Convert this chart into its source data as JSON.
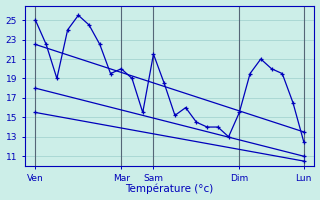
{
  "xlabel": "Température (°c)",
  "background_color": "#cceee8",
  "grid_color": "#aad8d4",
  "line_color": "#0000bb",
  "vline_color": "#556677",
  "yticks": [
    11,
    13,
    15,
    17,
    19,
    21,
    23,
    25
  ],
  "ylim": [
    10.0,
    26.5
  ],
  "xlim": [
    0.0,
    13.5
  ],
  "xtick_positions": [
    0.5,
    4.5,
    6.0,
    10.0,
    13.0
  ],
  "xtick_labels": [
    "Ven",
    "Mar",
    "Sam",
    "Dim",
    "Lun"
  ],
  "vline_positions": [
    0.5,
    4.5,
    6.0,
    10.0,
    13.0
  ],
  "series": [
    {
      "x": [
        0.5,
        1.0,
        1.5,
        2.0,
        2.5,
        3.0,
        3.5,
        4.0,
        4.5,
        5.0,
        5.5,
        6.0,
        6.5,
        7.0,
        7.5,
        8.0,
        8.5,
        9.0,
        9.5,
        10.0,
        10.5,
        11.0,
        11.5,
        12.0,
        12.5,
        13.0
      ],
      "y": [
        25.0,
        22.5,
        19.0,
        24.0,
        25.5,
        24.5,
        22.5,
        19.5,
        20.0,
        19.0,
        15.5,
        21.5,
        18.5,
        15.2,
        16.0,
        14.5,
        14.0,
        14.0,
        13.0,
        15.5,
        19.5,
        21.0,
        20.0,
        19.5,
        16.5,
        12.5
      ]
    },
    {
      "x": [
        0.5,
        13.0
      ],
      "y": [
        22.5,
        13.5
      ]
    },
    {
      "x": [
        0.5,
        13.0
      ],
      "y": [
        18.0,
        11.0
      ]
    },
    {
      "x": [
        0.5,
        13.0
      ],
      "y": [
        15.5,
        10.5
      ]
    }
  ]
}
